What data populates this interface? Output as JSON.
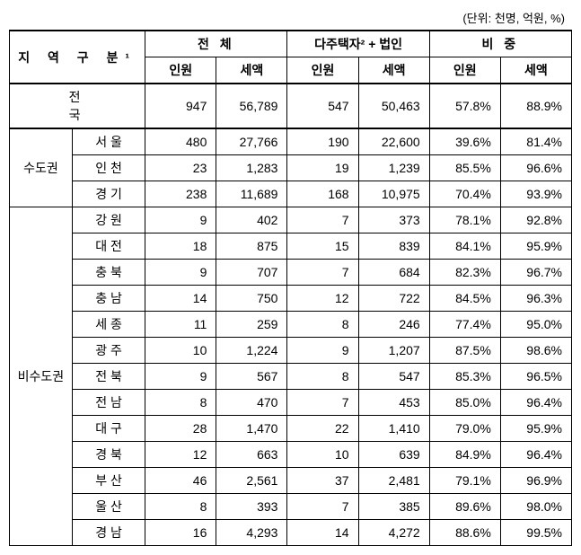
{
  "unit_label": "(단위: 천명, 억원, %)",
  "headers": {
    "region": "지 역 구 분¹",
    "total": "전   체",
    "multi": "다주택자² + 법인",
    "ratio": "비   중",
    "count": "인원",
    "amount": "세액"
  },
  "national": {
    "label": "전",
    "label2": "국",
    "total_count": "947",
    "total_amount": "56,789",
    "multi_count": "547",
    "multi_amount": "50,463",
    "ratio_count": "57.8%",
    "ratio_amount": "88.9%"
  },
  "groups": [
    {
      "group_label": "수도권",
      "rows": [
        {
          "label": "서   울",
          "tc": "480",
          "ta": "27,766",
          "mc": "190",
          "ma": "22,600",
          "rc": "39.6%",
          "ra": "81.4%"
        },
        {
          "label": "인   천",
          "tc": "23",
          "ta": "1,283",
          "mc": "19",
          "ma": "1,239",
          "rc": "85.5%",
          "ra": "96.6%"
        },
        {
          "label": "경   기",
          "tc": "238",
          "ta": "11,689",
          "mc": "168",
          "ma": "10,975",
          "rc": "70.4%",
          "ra": "93.9%"
        }
      ]
    },
    {
      "group_label": "비수도권",
      "rows": [
        {
          "label": "강   원",
          "tc": "9",
          "ta": "402",
          "mc": "7",
          "ma": "373",
          "rc": "78.1%",
          "ra": "92.8%"
        },
        {
          "label": "대   전",
          "tc": "18",
          "ta": "875",
          "mc": "15",
          "ma": "839",
          "rc": "84.1%",
          "ra": "95.9%"
        },
        {
          "label": "충   북",
          "tc": "9",
          "ta": "707",
          "mc": "7",
          "ma": "684",
          "rc": "82.3%",
          "ra": "96.7%"
        },
        {
          "label": "충   남",
          "tc": "14",
          "ta": "750",
          "mc": "12",
          "ma": "722",
          "rc": "84.5%",
          "ra": "96.3%"
        },
        {
          "label": "세   종",
          "tc": "11",
          "ta": "259",
          "mc": "8",
          "ma": "246",
          "rc": "77.4%",
          "ra": "95.0%"
        },
        {
          "label": "광   주",
          "tc": "10",
          "ta": "1,224",
          "mc": "9",
          "ma": "1,207",
          "rc": "87.5%",
          "ra": "98.6%"
        },
        {
          "label": "전   북",
          "tc": "9",
          "ta": "567",
          "mc": "8",
          "ma": "547",
          "rc": "85.3%",
          "ra": "96.5%"
        },
        {
          "label": "전   남",
          "tc": "8",
          "ta": "470",
          "mc": "7",
          "ma": "453",
          "rc": "85.0%",
          "ra": "96.4%"
        },
        {
          "label": "대   구",
          "tc": "28",
          "ta": "1,470",
          "mc": "22",
          "ma": "1,410",
          "rc": "79.0%",
          "ra": "95.9%"
        },
        {
          "label": "경   북",
          "tc": "12",
          "ta": "663",
          "mc": "10",
          "ma": "639",
          "rc": "84.9%",
          "ra": "96.4%"
        },
        {
          "label": "부   산",
          "tc": "46",
          "ta": "2,561",
          "mc": "37",
          "ma": "2,481",
          "rc": "79.1%",
          "ra": "96.9%"
        },
        {
          "label": "울   산",
          "tc": "8",
          "ta": "393",
          "mc": "7",
          "ma": "385",
          "rc": "89.6%",
          "ra": "98.0%"
        },
        {
          "label": "경   남",
          "tc": "16",
          "ta": "4,293",
          "mc": "14",
          "ma": "4,272",
          "rc": "88.6%",
          "ra": "99.5%"
        }
      ]
    }
  ]
}
